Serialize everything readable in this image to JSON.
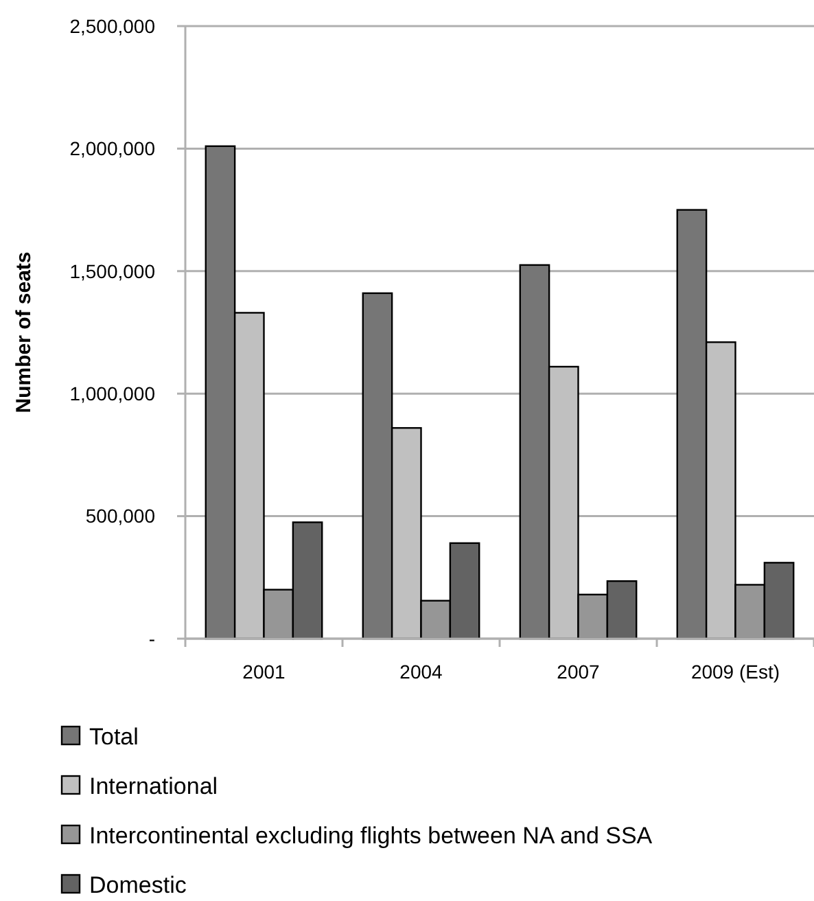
{
  "chart_data": {
    "type": "bar",
    "ylabel": "Number of seats",
    "categories": [
      "2001",
      "2004",
      "2007",
      "2009 (Est)"
    ],
    "series": [
      {
        "name": "Total",
        "color": "#767676",
        "values": [
          2010000,
          1410000,
          1525000,
          1750000
        ]
      },
      {
        "name": "International",
        "color": "#c0c0c0",
        "values": [
          1330000,
          860000,
          1110000,
          1210000
        ]
      },
      {
        "name": "Intercontinental excluding flights between NA and SSA",
        "color": "#969696",
        "values": [
          200000,
          155000,
          180000,
          220000
        ]
      },
      {
        "name": "Domestic",
        "color": "#636363",
        "values": [
          475000,
          390000,
          235000,
          310000
        ]
      }
    ],
    "ylim": [
      0,
      2500000
    ],
    "yticks": [
      {
        "value": 0,
        "label": "-"
      },
      {
        "value": 500000,
        "label": "500,000"
      },
      {
        "value": 1000000,
        "label": "1,000,000"
      },
      {
        "value": 1500000,
        "label": "1,500,000"
      },
      {
        "value": 2000000,
        "label": "2,000,000"
      },
      {
        "value": 2500000,
        "label": "2,500,000"
      }
    ],
    "grid": "y",
    "legend": "bottom left"
  }
}
